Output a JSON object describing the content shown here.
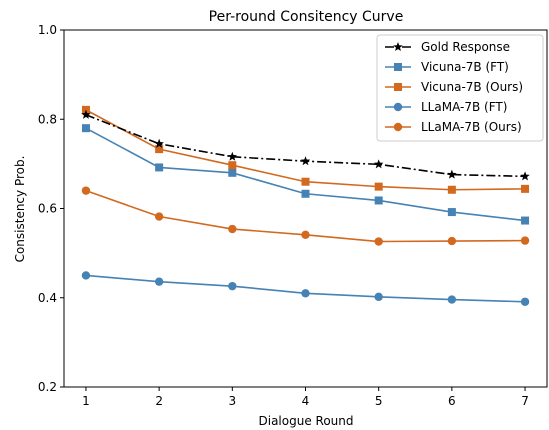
{
  "chart_data": {
    "type": "line",
    "title": "Per-round Consitency Curve",
    "xlabel": "Dialogue Round",
    "ylabel": "Consistency Prob.",
    "x": [
      1,
      2,
      3,
      4,
      5,
      6,
      7
    ],
    "xticks": [
      "1",
      "2",
      "3",
      "4",
      "5",
      "6",
      "7"
    ],
    "xlim": [
      0.7,
      7.3
    ],
    "ylim": [
      0.2,
      1.0
    ],
    "yticks": [
      "0.2",
      "0.4",
      "0.6",
      "0.8",
      "1.0"
    ],
    "ytick_values": [
      0.2,
      0.4,
      0.6,
      0.8,
      1.0
    ],
    "grid": false,
    "legend_position": "top-right",
    "series": [
      {
        "name": "Gold Response",
        "color": "#000000",
        "marker": "star",
        "dash": "dashdot",
        "values": [
          0.81,
          0.745,
          0.716,
          0.706,
          0.699,
          0.676,
          0.672
        ]
      },
      {
        "name": "Vicuna-7B (FT)",
        "color": "#4682b4",
        "marker": "square",
        "dash": "solid",
        "values": [
          0.78,
          0.692,
          0.68,
          0.633,
          0.618,
          0.592,
          0.573
        ]
      },
      {
        "name": "Vicuna-7B (Ours)",
        "color": "#d2691e",
        "marker": "square",
        "dash": "solid",
        "values": [
          0.821,
          0.733,
          0.697,
          0.66,
          0.649,
          0.642,
          0.644
        ]
      },
      {
        "name": "LLaMA-7B (FT)",
        "color": "#4682b4",
        "marker": "circle",
        "dash": "solid",
        "values": [
          0.45,
          0.436,
          0.426,
          0.41,
          0.402,
          0.396,
          0.391
        ]
      },
      {
        "name": "LLaMA-7B (Ours)",
        "color": "#d2691e",
        "marker": "circle",
        "dash": "solid",
        "values": [
          0.64,
          0.582,
          0.554,
          0.541,
          0.526,
          0.527,
          0.528
        ]
      }
    ]
  }
}
